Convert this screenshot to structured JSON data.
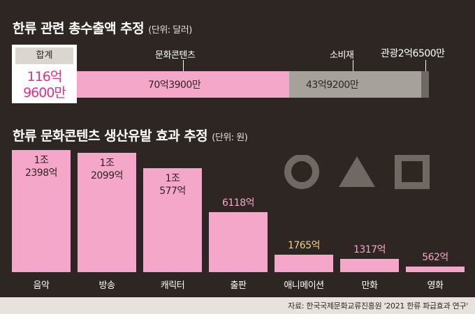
{
  "section1": {
    "title": "한류 관련 총수출액 추정",
    "unit": "(단위: 달러)",
    "total_header": "합계",
    "total_line1": "116억",
    "total_line2": "9600만"
  },
  "section2": {
    "title": "한류 문화콘텐츠 생산유발 효과 추정",
    "unit": "(단위: 원)"
  },
  "source": "자료: 한국국제문화교류진흥원 '2021 한류 파급효과 연구'",
  "colors": {
    "background": "#2e2622",
    "pink": "#f4a7c9",
    "gray": "#a7a19b",
    "darkgray": "#6f6863",
    "total_text": "#e2308a",
    "gold_label": "#f5d089"
  },
  "chart_data": [
    {
      "type": "bar",
      "orientation": "horizontal-stacked",
      "title": "한류 관련 총수출액 추정",
      "unit": "(단위: 달러)",
      "total_label": "합계",
      "total_text": "116억 9600만",
      "total_value": 11696000000,
      "series": [
        {
          "name": "문화콘텐츠",
          "value": 7039000000,
          "label": "70억3900만",
          "color": "#f4a7c9"
        },
        {
          "name": "소비재",
          "value": 4392000000,
          "label": "43억9200만",
          "color": "#a7a19b"
        },
        {
          "name": "관광",
          "value": 265000000,
          "label": "2억6500만",
          "color": "#6f6863"
        }
      ]
    },
    {
      "type": "bar",
      "title": "한류 문화콘텐츠 생산유발 효과 추정",
      "unit": "(단위: 원)",
      "categories": [
        "음악",
        "방송",
        "캐릭터",
        "출판",
        "애니메이션",
        "만화",
        "영화"
      ],
      "values": [
        1239800000000,
        1209900000000,
        1057700000000,
        611800000000,
        176500000000,
        131700000000,
        56200000000
      ],
      "labels": [
        [
          "1조",
          "2398억"
        ],
        [
          "1조",
          "2099억"
        ],
        [
          "1조",
          "577억"
        ],
        [
          "6118억"
        ],
        [
          "1765억"
        ],
        [
          "1317억"
        ],
        [
          "562억"
        ]
      ],
      "label_colors": [
        "#2e2622",
        "#2e2622",
        "#2e2622",
        "#f4a7c9",
        "#f5d089",
        "#f4a7c9",
        "#f4a7c9"
      ]
    }
  ]
}
